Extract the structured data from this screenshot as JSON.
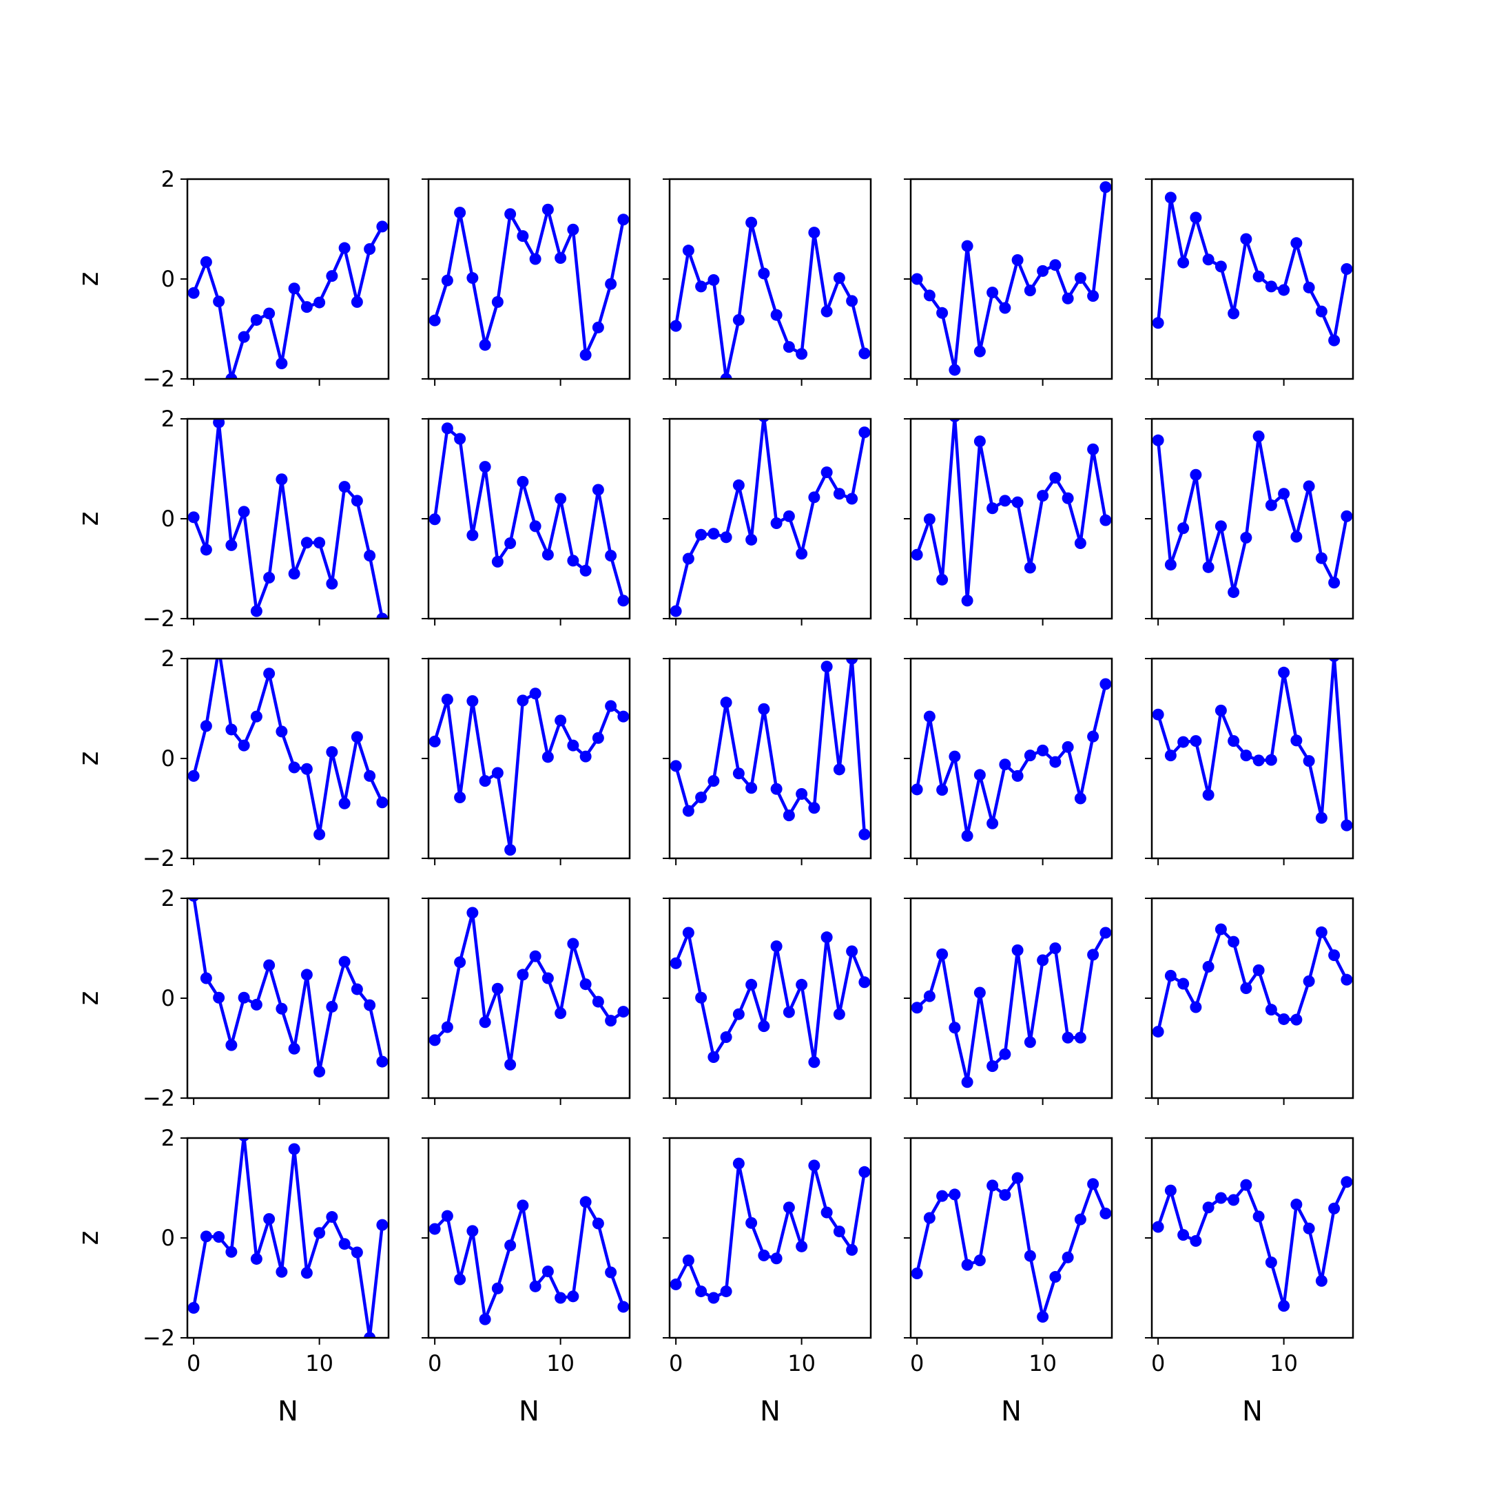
{
  "chart_data": {
    "type": "line",
    "layout": "5x5 grid of subplots",
    "xlabel": "N",
    "ylabel": "z",
    "xlim": [
      -0.5,
      15.5
    ],
    "ylim": [
      -2,
      2
    ],
    "xticks": [
      0,
      10
    ],
    "yticks": [
      -2,
      0,
      2
    ],
    "xtick_labels": [
      "0",
      "10"
    ],
    "ytick_labels": [
      "−2",
      "0",
      "2"
    ],
    "color": "#0000ff",
    "marker": "circle",
    "grid": false,
    "x": [
      0,
      1,
      2,
      3,
      4,
      5,
      6,
      7,
      8,
      9,
      10,
      11,
      12,
      13,
      14,
      15
    ],
    "panels": [
      [
        -0.28,
        0.34,
        -0.45,
        -2.0,
        -1.16,
        -0.82,
        -0.69,
        -1.69,
        -0.19,
        -0.56,
        -0.47,
        0.06,
        0.62,
        -0.46,
        0.6,
        1.05
      ],
      [
        -0.83,
        -0.03,
        1.33,
        0.02,
        -1.32,
        -0.46,
        1.3,
        0.86,
        0.4,
        1.39,
        0.42,
        0.99,
        -1.52,
        -0.97,
        -0.1,
        1.19
      ],
      [
        -0.94,
        0.57,
        -0.15,
        -0.02,
        -2.0,
        -0.82,
        1.13,
        0.11,
        -0.72,
        -1.36,
        -1.5,
        0.93,
        -0.65,
        0.02,
        -0.44,
        -1.49
      ],
      [
        0.0,
        -0.33,
        -0.68,
        -1.82,
        0.66,
        -1.45,
        -0.27,
        -0.58,
        0.38,
        -0.23,
        0.16,
        0.28,
        -0.39,
        0.02,
        -0.34,
        1.84
      ],
      [
        -0.88,
        1.63,
        0.33,
        1.23,
        0.39,
        0.25,
        -0.69,
        0.8,
        0.05,
        -0.15,
        -0.22,
        0.72,
        -0.17,
        -0.65,
        -1.23,
        0.2
      ],
      [
        0.03,
        -0.62,
        1.93,
        -0.53,
        0.14,
        -1.85,
        -1.18,
        0.79,
        -1.1,
        -0.48,
        -0.48,
        -1.3,
        0.64,
        0.36,
        -0.74,
        -2.0
      ],
      [
        -0.01,
        1.81,
        1.6,
        -0.33,
        1.04,
        -0.86,
        -0.49,
        0.74,
        -0.15,
        -0.72,
        0.4,
        -0.84,
        -1.04,
        0.58,
        -0.74,
        -1.64
      ],
      [
        -1.85,
        -0.8,
        -0.32,
        -0.3,
        -0.37,
        0.67,
        -0.42,
        2.05,
        -0.09,
        0.05,
        -0.7,
        0.43,
        0.93,
        0.5,
        0.4,
        1.73
      ],
      [
        -0.72,
        -0.01,
        -1.22,
        2.05,
        -1.64,
        1.55,
        0.21,
        0.36,
        0.33,
        -0.98,
        0.46,
        0.82,
        0.41,
        -0.49,
        1.39,
        -0.03
      ],
      [
        1.57,
        -0.92,
        -0.19,
        0.88,
        -0.97,
        -0.15,
        -1.47,
        -0.38,
        1.65,
        0.27,
        0.5,
        -0.36,
        0.65,
        -0.79,
        -1.28,
        0.05
      ],
      [
        -0.35,
        0.65,
        2.2,
        0.58,
        0.26,
        0.84,
        1.7,
        0.54,
        -0.18,
        -0.21,
        -1.52,
        0.13,
        -0.9,
        0.43,
        -0.35,
        -0.88
      ],
      [
        0.34,
        1.18,
        -0.78,
        1.15,
        -0.45,
        -0.29,
        -1.83,
        1.16,
        1.3,
        0.03,
        0.76,
        0.26,
        0.04,
        0.41,
        1.05,
        0.84
      ],
      [
        -0.15,
        -1.05,
        -0.78,
        -0.45,
        1.12,
        -0.3,
        -0.59,
        0.99,
        -0.61,
        -1.14,
        -0.71,
        -0.99,
        1.84,
        -0.22,
        2.0,
        -1.52
      ],
      [
        -0.62,
        0.84,
        -0.63,
        0.04,
        -1.55,
        -0.33,
        -1.3,
        -0.12,
        -0.35,
        0.06,
        0.16,
        -0.07,
        0.23,
        -0.8,
        0.44,
        1.49
      ],
      [
        0.88,
        0.06,
        0.33,
        0.35,
        -0.73,
        0.96,
        0.35,
        0.06,
        -0.04,
        -0.03,
        1.72,
        0.36,
        -0.05,
        -1.19,
        2.05,
        -1.34
      ],
      [
        2.05,
        0.4,
        0.01,
        -0.94,
        0.01,
        -0.13,
        0.66,
        -0.21,
        -1.01,
        0.47,
        -1.47,
        -0.17,
        0.73,
        0.18,
        -0.14,
        -1.27
      ],
      [
        -0.84,
        -0.58,
        0.72,
        1.71,
        -0.48,
        0.19,
        -1.33,
        0.47,
        0.84,
        0.4,
        -0.3,
        1.09,
        0.28,
        -0.07,
        -0.45,
        -0.27
      ],
      [
        0.7,
        1.31,
        0.01,
        -1.18,
        -0.78,
        -0.32,
        0.27,
        -0.56,
        1.04,
        -0.28,
        0.27,
        -1.28,
        1.22,
        -0.32,
        0.94,
        0.32
      ],
      [
        -0.19,
        0.04,
        0.88,
        -0.59,
        -1.68,
        0.11,
        -1.36,
        -1.12,
        0.96,
        -0.88,
        0.76,
        1.0,
        -0.79,
        -0.79,
        0.87,
        1.31
      ],
      [
        -0.67,
        0.45,
        0.29,
        -0.18,
        0.63,
        1.38,
        1.13,
        0.2,
        0.56,
        -0.23,
        -0.42,
        -0.43,
        0.34,
        1.32,
        0.86,
        0.37
      ],
      [
        -1.4,
        0.03,
        0.02,
        -0.28,
        2.05,
        -0.42,
        0.38,
        -0.68,
        1.78,
        -0.7,
        0.1,
        0.42,
        -0.12,
        -0.29,
        -2.0,
        0.26
      ],
      [
        0.18,
        0.44,
        -0.83,
        0.14,
        -1.63,
        -1.01,
        -0.15,
        0.65,
        -0.97,
        -0.67,
        -1.2,
        -1.17,
        0.72,
        0.29,
        -0.69,
        -1.38
      ],
      [
        -0.93,
        -0.45,
        -1.07,
        -1.2,
        -1.07,
        1.49,
        0.3,
        -0.35,
        -0.41,
        0.61,
        -0.17,
        1.45,
        0.51,
        0.13,
        -0.24,
        1.32
      ],
      [
        -0.71,
        0.4,
        0.84,
        0.87,
        -0.54,
        -0.45,
        1.05,
        0.86,
        1.2,
        -0.36,
        -1.58,
        -0.78,
        -0.39,
        0.37,
        1.08,
        0.49
      ],
      [
        0.22,
        0.95,
        0.06,
        -0.06,
        0.61,
        0.8,
        0.76,
        1.06,
        0.43,
        -0.49,
        -1.36,
        0.67,
        0.19,
        -0.86,
        0.59,
        1.12
      ]
    ]
  }
}
